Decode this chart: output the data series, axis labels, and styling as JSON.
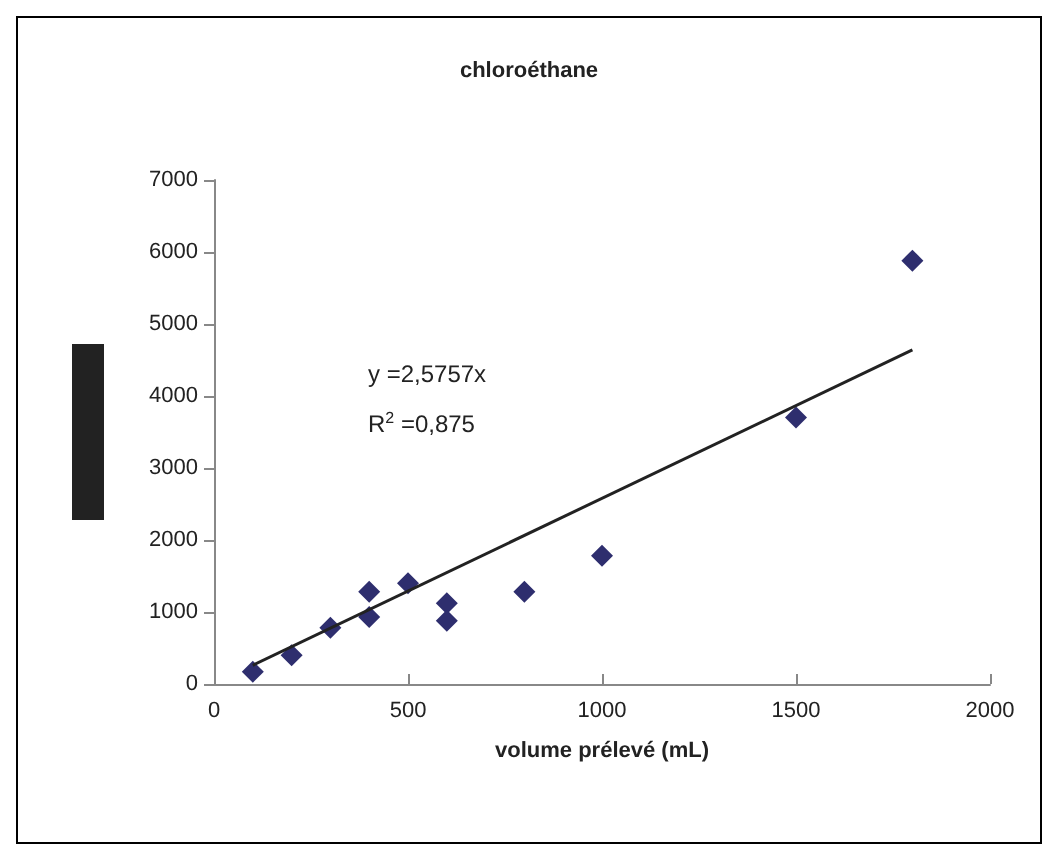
{
  "chart_data": {
    "type": "scatter",
    "title": "chloroéthane",
    "xlabel": "volume prélevé (mL)",
    "annotations": [
      "y =2,5757x",
      "R$^{2}$ =0,875"
    ],
    "x": [
      100,
      200,
      300,
      400,
      400,
      500,
      600,
      600,
      800,
      1000,
      1500,
      1800
    ],
    "series": [
      {
        "color": "#2e2e6e",
        "values": [
          170,
          400,
          780,
          1280,
          930,
          1400,
          1120,
          880,
          1280,
          1780,
          3700,
          5880
        ]
      },
      {
        "type": "line",
        "color": "#222222",
        "marker": "none",
        "x": [
          100,
          1800
        ],
        "values": [
          260,
          4640
        ]
      }
    ],
    "marker": "diamond",
    "grid": false,
    "xlim": [
      0,
      2000
    ],
    "xticks": [
      0,
      500,
      1000,
      1500,
      2000
    ],
    "ylim": [
      0,
      7000
    ],
    "yticks": [
      0,
      1000,
      2000,
      3000,
      4000,
      5000,
      6000,
      7000
    ]
  }
}
